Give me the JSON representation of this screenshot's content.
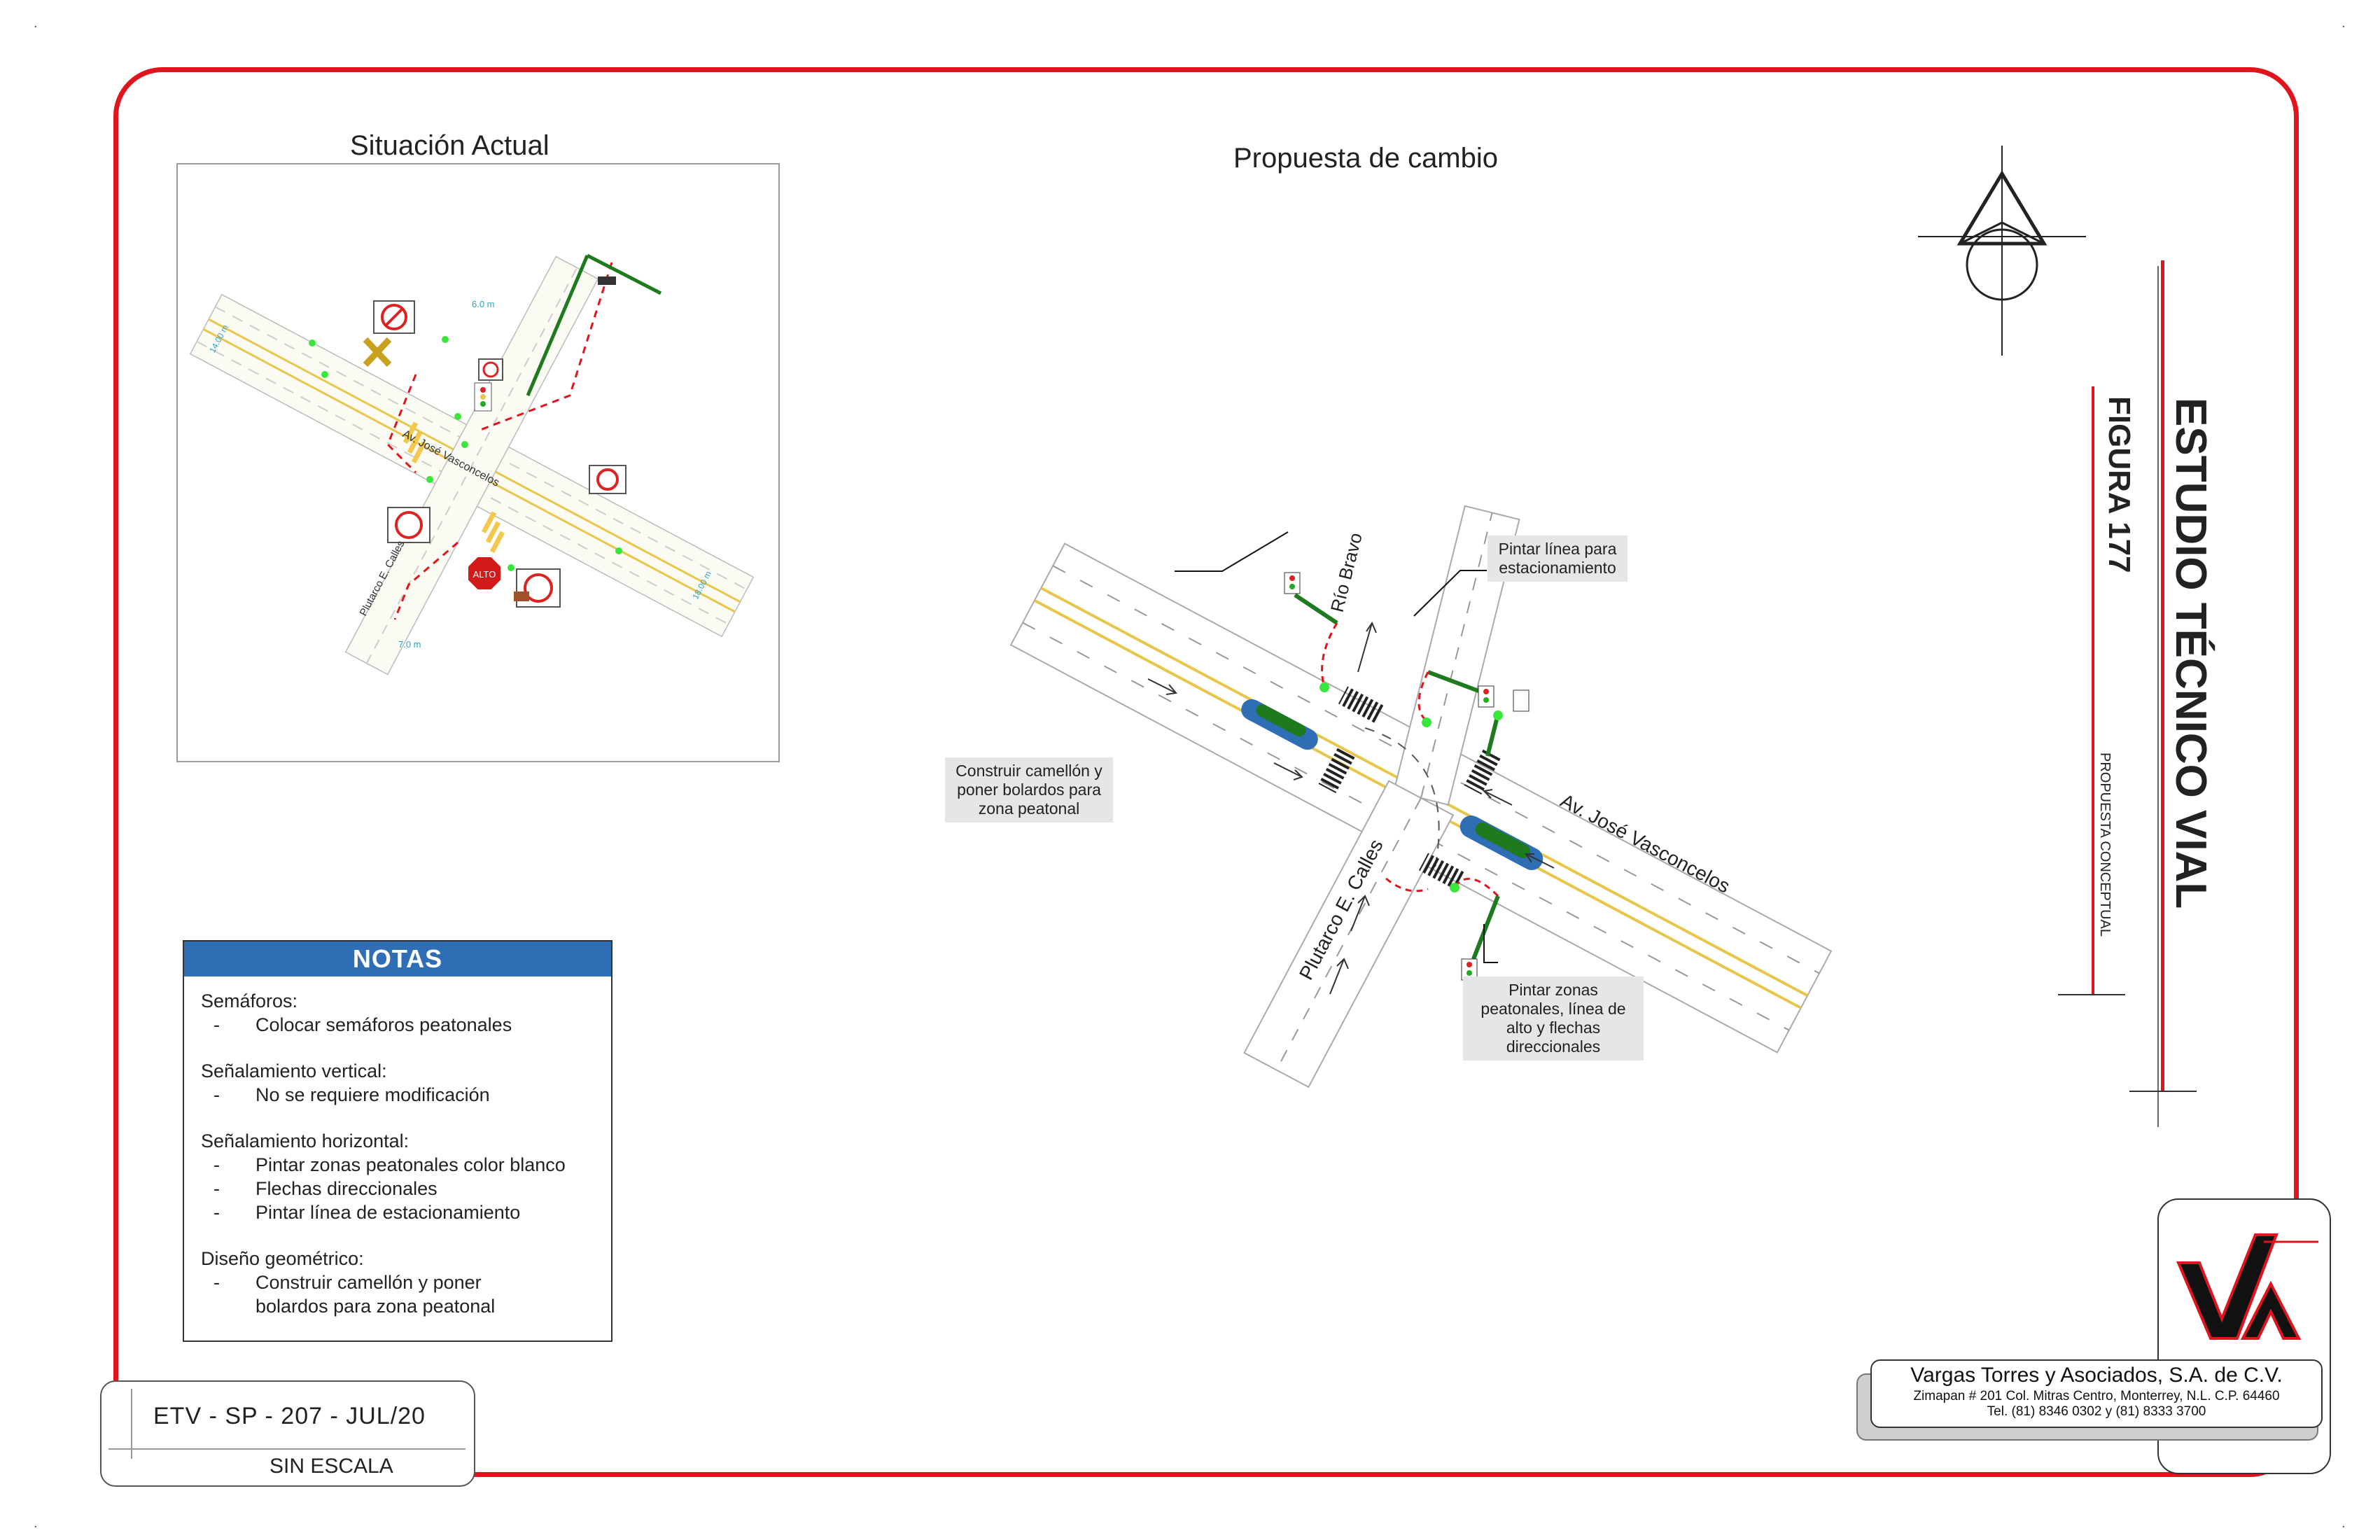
{
  "left_title": "Situación Actual",
  "center_title": "Propuesta de cambio",
  "side": {
    "main_title": "ESTUDIO TÉCNICO VIAL",
    "figure": "FIGURA 177",
    "subtitle": "PROPUESTA CONCEPTUAL"
  },
  "notas": {
    "header": "NOTAS",
    "sections": [
      {
        "title": "Semáforos:",
        "items": [
          "Colocar semáforos peatonales"
        ]
      },
      {
        "title": "Señalamiento vertical:",
        "items": [
          "No se requiere modificación"
        ]
      },
      {
        "title": "Señalamiento horizontal:",
        "items": [
          "Pintar zonas peatonales color blanco",
          "Flechas direccionales",
          "Pintar línea de estacionamiento"
        ]
      },
      {
        "title": "Diseño geométrico:",
        "items": [
          "Construir camellón  y poner",
          "bolardos para zona peatonal"
        ]
      }
    ],
    "dash": "-"
  },
  "code": {
    "reference": "ETV - SP - 207 - JUL/20",
    "scale": "SIN ESCALA"
  },
  "company": {
    "name": "Vargas Torres y Asociados, S.A. de C.V.",
    "address": "Zimapan # 201 Col. Mitras Centro, Monterrey, N.L. C.P. 64460",
    "phone": "Tel. (81) 8346 0302  y  (81) 8333 3700"
  },
  "callouts": {
    "parking": "Pintar línea para estacionamiento",
    "median": "Construir camellón y poner bolardos para zona peatonal",
    "crosswalks": "Pintar zonas peatonales, línea de alto y flechas direccionales"
  },
  "streets": {
    "rio_bravo": "Río Bravo",
    "vasconcelos": "Av. José Vasconcelos",
    "calles": "Plutarco E. Calles"
  },
  "existing_labels": {
    "vasconcelos": "Av. José Vasconcelos",
    "calles": "Plutarco E. Calles",
    "dim_a": "6.0 m",
    "dim_b": "7.0 m",
    "dim_c": "14.00 m",
    "dim_d": "18.00 m",
    "alto": "ALTO"
  },
  "colors": {
    "frame_red": "#e0141c",
    "notas_blue": "#2f6db5",
    "signal_green": "#1e7a1e",
    "median_blue": "#2f6db5",
    "bright_green": "#39e639"
  }
}
